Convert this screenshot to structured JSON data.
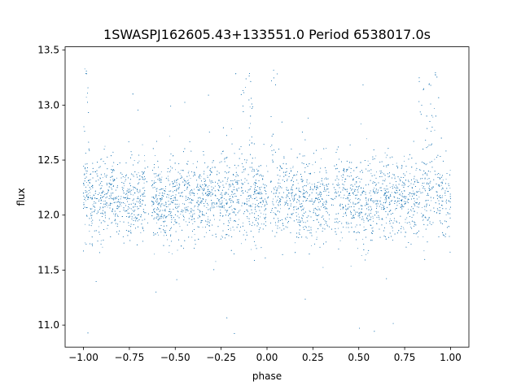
{
  "chart_data": {
    "type": "scatter",
    "title": "1SWASPJ162605.43+133551.0 Period 6538017.0s",
    "xlabel": "phase",
    "ylabel": "flux",
    "xlim": [
      -1.1,
      1.1
    ],
    "ylim": [
      10.8,
      13.53
    ],
    "xticks": [
      -1.0,
      -0.75,
      -0.5,
      -0.25,
      0.0,
      0.25,
      0.5,
      0.75,
      1.0
    ],
    "xtick_labels": [
      "−1.00",
      "−0.75",
      "−0.50",
      "−0.25",
      "0.00",
      "0.25",
      "0.50",
      "0.75",
      "1.00"
    ],
    "yticks": [
      11.0,
      11.5,
      12.0,
      12.5,
      13.0,
      13.5
    ],
    "ytick_labels": [
      "11.0",
      "11.5",
      "12.0",
      "12.5",
      "13.0",
      "13.5"
    ],
    "grid": false,
    "legend": "none",
    "point_color": "#1f77b4",
    "phase_range": [
      -1.0,
      1.0
    ],
    "baseline_flux": 12.15,
    "core_spread": 0.19,
    "series": [
      {
        "x": [
          -1.0,
          -0.98,
          -0.97,
          -0.95,
          -0.93,
          -0.9,
          -0.88,
          -0.86,
          -0.84,
          -0.82,
          -0.8,
          -0.78,
          -0.76,
          -0.74,
          -0.72,
          -0.7,
          -0.68,
          -0.67,
          -0.62,
          -0.6,
          -0.57,
          -0.55,
          -0.52,
          -0.5,
          -0.48,
          -0.45,
          -0.42,
          -0.4,
          -0.37,
          -0.35,
          -0.32,
          -0.3,
          -0.27,
          -0.25,
          -0.22,
          -0.2,
          -0.17,
          -0.15,
          -0.13,
          -0.11,
          -0.09,
          -0.07,
          -0.05,
          -0.03,
          0.0,
          0.02,
          0.03,
          0.05,
          0.07,
          0.1,
          0.12,
          0.15,
          0.18,
          0.2,
          0.22,
          0.25,
          0.27,
          0.3,
          0.32,
          0.35,
          0.38,
          0.4,
          0.43,
          0.45,
          0.48,
          0.5,
          0.52,
          0.55,
          0.57,
          0.6,
          0.62,
          0.65,
          0.67,
          0.7,
          0.72,
          0.75,
          0.78,
          0.8,
          0.82,
          0.85,
          0.87,
          0.88,
          0.9,
          0.92,
          0.95,
          0.97,
          1.0
        ],
        "y": [
          12.2,
          12.4,
          12.6,
          12.25,
          12.15,
          12.2,
          12.1,
          12.15,
          12.2,
          12.15,
          12.1,
          12.2,
          12.15,
          12.1,
          12.2,
          12.15,
          12.1,
          12.2,
          12.1,
          12.05,
          12.2,
          12.1,
          12.15,
          12.1,
          12.2,
          12.1,
          12.15,
          12.2,
          12.1,
          12.15,
          12.05,
          12.1,
          12.15,
          12.1,
          12.2,
          12.15,
          12.3,
          12.6,
          12.2,
          12.5,
          12.9,
          12.4,
          12.2,
          12.15,
          12.1,
          12.3,
          12.5,
          12.2,
          12.15,
          12.1,
          12.2,
          12.15,
          12.1,
          12.2,
          12.15,
          12.1,
          12.2,
          12.15,
          12.1,
          12.15,
          12.2,
          12.1,
          12.15,
          12.2,
          12.1,
          12.15,
          12.2,
          12.1,
          12.15,
          12.2,
          12.1,
          12.15,
          12.1,
          12.2,
          12.15,
          12.1,
          12.2,
          12.15,
          12.3,
          12.6,
          12.9,
          12.4,
          12.8,
          12.9,
          12.7,
          12.2,
          12.15
        ]
      }
    ]
  }
}
